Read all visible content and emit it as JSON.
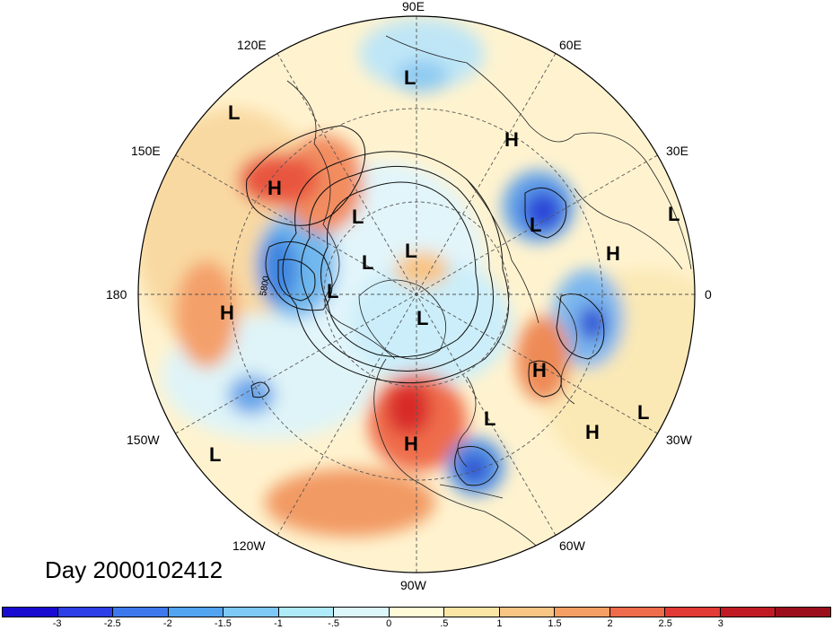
{
  "title": "Day 2000102412",
  "longitude_labels": [
    "90E",
    "60E",
    "30E",
    "0",
    "30W",
    "60W",
    "90W",
    "120W",
    "150W",
    "180",
    "150E",
    "120E"
  ],
  "contour_label": "5800",
  "pressure_centers": [
    {
      "t": "L"
    },
    {
      "t": "L"
    },
    {
      "t": "H"
    },
    {
      "t": "H"
    },
    {
      "t": "L"
    },
    {
      "t": "L"
    },
    {
      "t": "L"
    },
    {
      "t": "L"
    },
    {
      "t": "H"
    },
    {
      "t": "L"
    },
    {
      "t": "L"
    },
    {
      "t": "H"
    },
    {
      "t": "L"
    },
    {
      "t": "H"
    },
    {
      "t": "H"
    },
    {
      "t": "L"
    },
    {
      "t": "H"
    },
    {
      "t": "L"
    },
    {
      "t": "L"
    }
  ],
  "colorbar": {
    "colors": [
      "#1a0bd0",
      "#2d3fe6",
      "#3d79ec",
      "#52a3f0",
      "#7ec8f5",
      "#aeeaf8",
      "#dcf6fb",
      "#fffbd8",
      "#fbe6a6",
      "#f8c585",
      "#f59f64",
      "#ee6b4b",
      "#e23a34",
      "#c01b24",
      "#9b0e1c"
    ],
    "ticks": [
      "-3",
      "-2.5",
      "-2",
      "-1.5",
      "-1",
      "-.5",
      "0",
      ".5",
      "1",
      "1.5",
      "2",
      "2.5",
      "3"
    ]
  }
}
